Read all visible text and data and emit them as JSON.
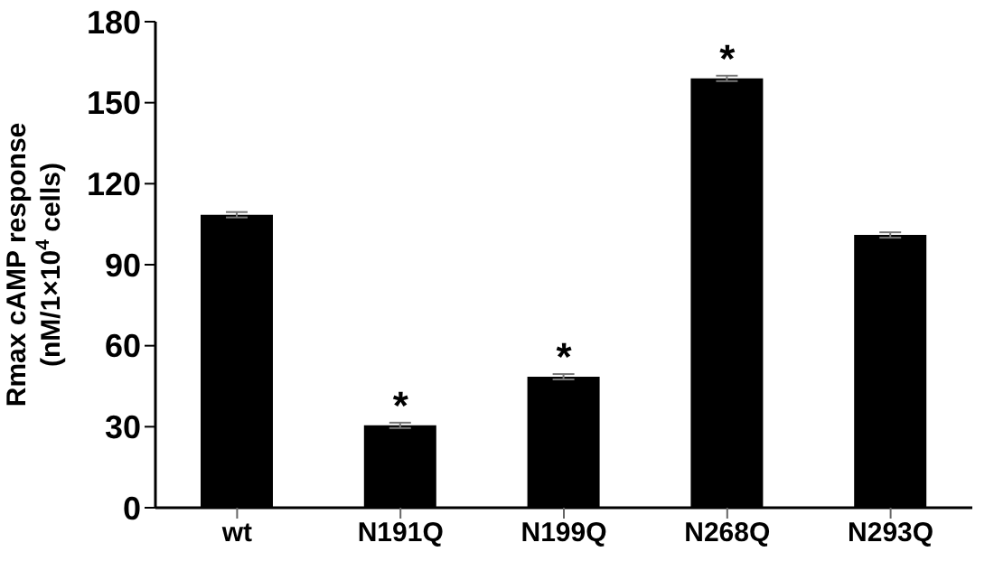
{
  "chart_data": {
    "type": "bar",
    "ylabel": "Rmax cAMP response\n(nM/1×10$^{4}$ cells)",
    "categories": [
      "wt",
      "N191Q",
      "N199Q",
      "N268Q",
      "N293Q"
    ],
    "values": [
      108.5,
      30.5,
      48.5,
      159,
      101
    ],
    "errors": [
      1,
      1,
      1,
      1,
      1
    ],
    "color": "#000000",
    "ylim": [
      0,
      180
    ],
    "yticks": [
      0,
      30,
      60,
      90,
      120,
      150,
      180
    ],
    "annotations": [
      {
        "text": "*",
        "x": "N191Q",
        "y": 31.5
      },
      {
        "text": "*",
        "x": "N199Q",
        "y": 49.5
      },
      {
        "text": "*",
        "x": "N268Q",
        "y": 160
      }
    ]
  }
}
